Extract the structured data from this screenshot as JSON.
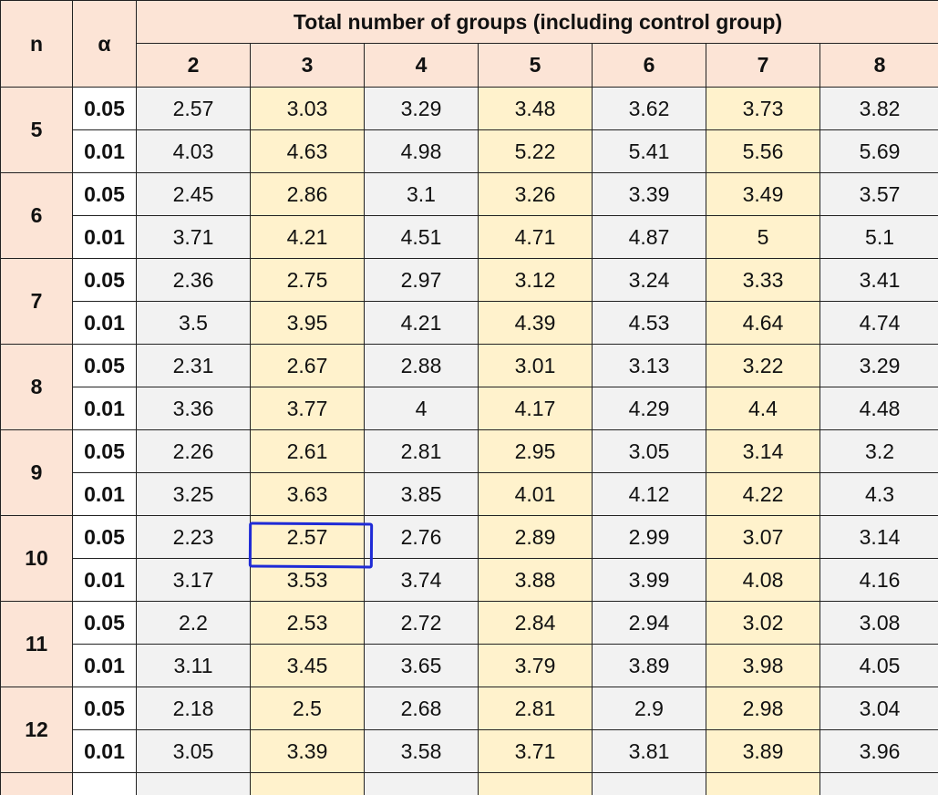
{
  "header": {
    "n_label": "n",
    "alpha_label": "α",
    "title": "Total number of groups (including control group)",
    "groups": [
      "2",
      "3",
      "4",
      "5",
      "6",
      "7",
      "8"
    ]
  },
  "rows": [
    {
      "n": "5",
      "alphas": [
        {
          "alpha": "0.05",
          "values": [
            "2.57",
            "3.03",
            "3.29",
            "3.48",
            "3.62",
            "3.73",
            "3.82"
          ]
        },
        {
          "alpha": "0.01",
          "values": [
            "4.03",
            "4.63",
            "4.98",
            "5.22",
            "5.41",
            "5.56",
            "5.69"
          ]
        }
      ]
    },
    {
      "n": "6",
      "alphas": [
        {
          "alpha": "0.05",
          "values": [
            "2.45",
            "2.86",
            "3.1",
            "3.26",
            "3.39",
            "3.49",
            "3.57"
          ]
        },
        {
          "alpha": "0.01",
          "values": [
            "3.71",
            "4.21",
            "4.51",
            "4.71",
            "4.87",
            "5",
            "5.1"
          ]
        }
      ]
    },
    {
      "n": "7",
      "alphas": [
        {
          "alpha": "0.05",
          "values": [
            "2.36",
            "2.75",
            "2.97",
            "3.12",
            "3.24",
            "3.33",
            "3.41"
          ]
        },
        {
          "alpha": "0.01",
          "values": [
            "3.5",
            "3.95",
            "4.21",
            "4.39",
            "4.53",
            "4.64",
            "4.74"
          ]
        }
      ]
    },
    {
      "n": "8",
      "alphas": [
        {
          "alpha": "0.05",
          "values": [
            "2.31",
            "2.67",
            "2.88",
            "3.01",
            "3.13",
            "3.22",
            "3.29"
          ]
        },
        {
          "alpha": "0.01",
          "values": [
            "3.36",
            "3.77",
            "4",
            "4.17",
            "4.29",
            "4.4",
            "4.48"
          ]
        }
      ]
    },
    {
      "n": "9",
      "alphas": [
        {
          "alpha": "0.05",
          "values": [
            "2.26",
            "2.61",
            "2.81",
            "2.95",
            "3.05",
            "3.14",
            "3.2"
          ]
        },
        {
          "alpha": "0.01",
          "values": [
            "3.25",
            "3.63",
            "3.85",
            "4.01",
            "4.12",
            "4.22",
            "4.3"
          ]
        }
      ]
    },
    {
      "n": "10",
      "alphas": [
        {
          "alpha": "0.05",
          "values": [
            "2.23",
            "2.57",
            "2.76",
            "2.89",
            "2.99",
            "3.07",
            "3.14"
          ]
        },
        {
          "alpha": "0.01",
          "values": [
            "3.17",
            "3.53",
            "3.74",
            "3.88",
            "3.99",
            "4.08",
            "4.16"
          ]
        }
      ]
    },
    {
      "n": "11",
      "alphas": [
        {
          "alpha": "0.05",
          "values": [
            "2.2",
            "2.53",
            "2.72",
            "2.84",
            "2.94",
            "3.02",
            "3.08"
          ]
        },
        {
          "alpha": "0.01",
          "values": [
            "3.11",
            "3.45",
            "3.65",
            "3.79",
            "3.89",
            "3.98",
            "4.05"
          ]
        }
      ]
    },
    {
      "n": "12",
      "alphas": [
        {
          "alpha": "0.05",
          "values": [
            "2.18",
            "2.5",
            "2.68",
            "2.81",
            "2.9",
            "2.98",
            "3.04"
          ]
        },
        {
          "alpha": "0.01",
          "values": [
            "3.05",
            "3.39",
            "3.58",
            "3.71",
            "3.81",
            "3.89",
            "3.96"
          ]
        }
      ]
    }
  ],
  "highlight": {
    "n": "10",
    "alpha": "0.05",
    "group": "3",
    "value": "2.57",
    "color": "#1f2bd6"
  },
  "colors": {
    "header_bg": "#fce4d6",
    "grey_col_bg": "#f2f2f2",
    "yellow_col_bg": "#fff2cc",
    "grid": "#222222"
  }
}
